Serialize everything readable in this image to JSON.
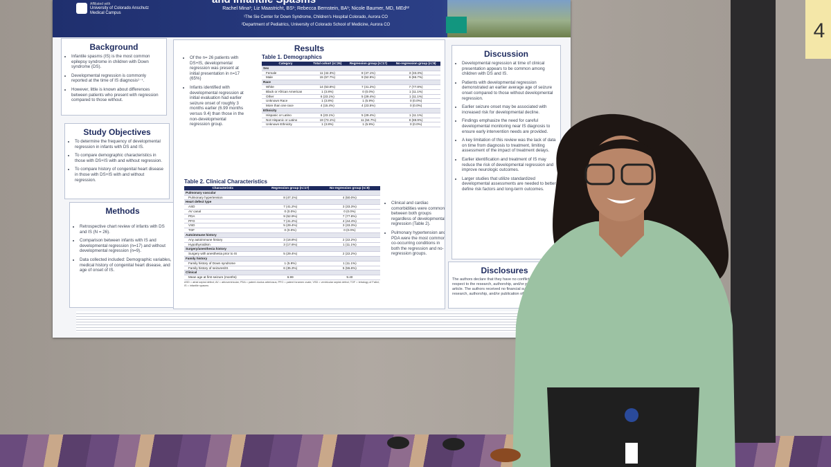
{
  "poster": {
    "header": {
      "affiliated": "Affiliated with",
      "institution": "University of Colorado Anschutz Medical Campus",
      "title_fragment": "and Infantile Spasms",
      "authors": "Rachel Mina¹; Liz Maastricht, BS¹; Rebecca Bernstein, BA¹; Nicole Baumer, MD, MEd¹²",
      "affiliation1": "¹The Sie Center for Down Syndrome, Children's Hospital Colorado, Aurora CO",
      "affiliation2": "²Department of Pediatrics, University of Colorado School of Medicine, Aurora CO"
    },
    "background": {
      "heading": "Background",
      "bullets": [
        "Infantile spasms (IS) is the most common epilepsy syndrome in children with Down syndrome (DS).",
        "Developmental regression is commonly reported at the time of IS diagnosis¹⁻⁷.",
        "However, little is known about differences between patients who present with regression compared to those without."
      ]
    },
    "objectives": {
      "heading": "Study Objectives",
      "bullets": [
        "To determine the frequency of developmental regression in infants with DS and IS.",
        "To compare demographic characteristics in those with DS+IS with and without regression.",
        "To compare history of congenital heart disease in those with DS+IS with and without regression."
      ]
    },
    "methods": {
      "heading": "Methods",
      "bullets": [
        "Retrospective chart review of infants with DS and IS (N = 26).",
        "Comparison between infants with IS and developmental regression (n=17) and without developmental regression (n=9).",
        "Data collected included: Demographic variables, medical history of congenital heart disease, and age of onset of IS."
      ]
    },
    "results": {
      "heading": "Results",
      "left_bullets": [
        "Of the n= 26 patients with DS+IS, developmental regression was present at initial presentation in n=17 (65%)",
        "Infants identified with developmental regression at initial evaluation had earlier seizure onset of roughly 3 months earlier (6.99 months versus 9.4) than those in the non-developmental regression group."
      ],
      "right_bullets": [
        "Clinical and cardiac comorbidities were common between both groups regardless of developmental regression (Table 2).",
        "Pulmonary hypertension and PDA were the most common co-occurring conditions in both the regression and no-regression groups."
      ]
    },
    "table1": {
      "caption": "Table 1. Demographics",
      "columns": [
        "Category",
        "Total cohort (n=26)",
        "Regression group (n=17)",
        "No-regression group (n=9)"
      ],
      "rows": [
        [
          "Sex"
        ],
        [
          "Female",
          "11 (42.3%)",
          "8 (47.1%)",
          "3 (33.3%)"
        ],
        [
          "Male",
          "15 (57.7%)",
          "9 (52.9%)",
          "6 (66.7%)"
        ],
        [
          "Race"
        ],
        [
          "White",
          "14 (53.8%)",
          "7 (41.2%)",
          "7 (77.8%)"
        ],
        [
          "Black or African American",
          "1 (3.8%)",
          "0 (0.0%)",
          "1 (11.1%)"
        ],
        [
          "Other",
          "6 (23.1%)",
          "5 (29.4%)",
          "1 (11.1%)"
        ],
        [
          "Unknown Race",
          "1 (3.8%)",
          "1 (5.9%)",
          "0 (0.0%)"
        ],
        [
          "More than one race",
          "4 (15.4%)",
          "4 (23.5%)",
          "0 (0.0%)"
        ],
        [
          "Ethnicity"
        ],
        [
          "Hispanic or Latino",
          "6 (23.1%)",
          "5 (29.4%)",
          "1 (11.1%)"
        ],
        [
          "Not Hispanic or Latino",
          "19 (73.1%)",
          "11 (64.7%)",
          "8 (88.9%)"
        ],
        [
          "Unknown Ethnicity",
          "1 (3.8%)",
          "1 (5.9%)",
          "0 (0.0%)"
        ]
      ]
    },
    "table2": {
      "caption": "Table 2. Clinical Characteristics",
      "columns": [
        "Characteristic",
        "Regression group (n=17)",
        "No-regression group (n=9)"
      ],
      "rows": [
        [
          "Pulmonary vascular"
        ],
        [
          "Pulmonary hypertension",
          "8 (47.1%)",
          "4 (50.0%)"
        ],
        [
          "Heart defect type"
        ],
        [
          "ASD",
          "7 (41.2%)",
          "3 (33.3%)"
        ],
        [
          "AV canal",
          "0 (0.0%)",
          "0 (0.0%)"
        ],
        [
          "PDA",
          "9 (52.9%)",
          "7 (77.8%)"
        ],
        [
          "PFO",
          "7 (41.2%)",
          "4 (44.4%)"
        ],
        [
          "VSD",
          "5 (29.4%)",
          "3 (33.3%)"
        ],
        [
          "TOF",
          "0 (0.0%)",
          "0 (0.0%)"
        ],
        [
          "Autoimmune history"
        ],
        [
          "Any autoimmune history",
          "3 (18.8%)",
          "2 (22.2%)"
        ],
        [
          "Hypothyroidism",
          "3 (17.6%)",
          "1 (11.1%)"
        ],
        [
          "Surgery/anesthesia history"
        ],
        [
          "Surgery with anesthesia prior to IS",
          "5 (29.4%)",
          "2 (22.2%)"
        ],
        [
          "Family history"
        ],
        [
          "Family history of Down syndrome",
          "1 (5.9%)",
          "1 (11.1%)"
        ],
        [
          "Family history of seizures/IS",
          "6 (35.3%)",
          "5 (55.6%)"
        ],
        [
          "Clinical"
        ],
        [
          "Mean age at first seizure (months)",
          "6.99",
          "9.40"
        ]
      ],
      "note": "ASD = atrial septal defect; AV = atrioventricular; PDA = patent ductus arteriosus; PFO = patent foramen ovale; VSD = ventricular septal defect; TOF = tetralogy of Fallot; IS = infantile spasms"
    },
    "discussion": {
      "heading": "Discussion",
      "bullets": [
        "Developmental regression at time of clinical presentation appears to be common among children with DS and IS.",
        "Patients with developmental regression demonstrated an earlier average age of seizure onset compared to those without developmental regression.",
        "Earlier seizure onset may be associated with increased risk for developmental decline.",
        "Findings emphasize the need for careful developmental monitoring near IS diagnosis to ensure early intervention needs are provided.",
        "A key limitation of this review was the lack of data on time from diagnosis to treatment, limiting assessment of the impact of treatment delays.",
        "Earlier identification and treatment of IS may reduce the risk of developmental regression and improve neurologic outcomes.",
        "Larger studies that utilize standardized developmental assessments are needed to better define risk factors and long-term outcomes."
      ]
    },
    "disclosures": {
      "heading": "Disclosures",
      "text": "The authors declare that they have no conflict of interest with respect to the research, authorship, and/or publication of this article. The authors received no financial support for the research, authorship, and/or publication of this article."
    }
  },
  "booth_sign": "4"
}
